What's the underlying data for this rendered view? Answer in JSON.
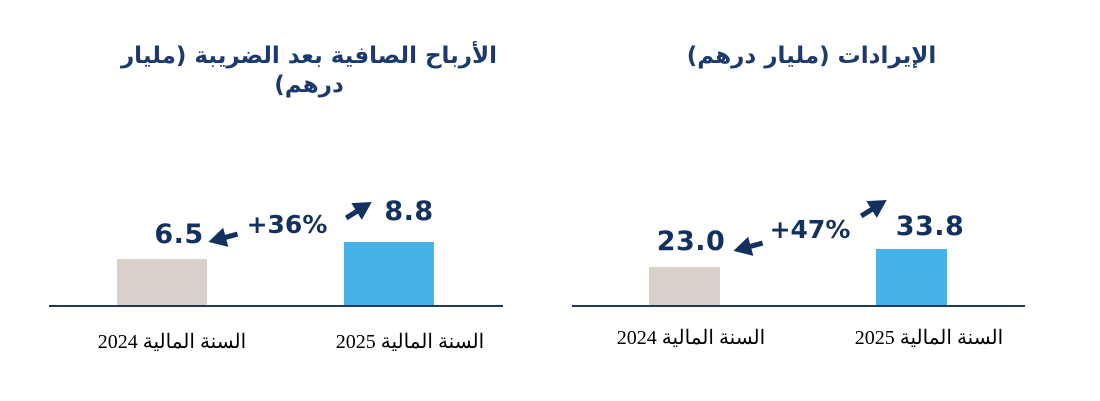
{
  "page": {
    "background": "#ffffff"
  },
  "colors": {
    "title_navy": "#1c3a6e",
    "value_navy": "#12315f",
    "axis_line": "#1f3a5c",
    "bar_2024_beige": "#d8d1c9",
    "bar_2025_blue": "#47b2e8",
    "tick_black": "#000000"
  },
  "charts": [
    {
      "title": "الأرباح الصافية بعد الضريبة (مليار درهم)",
      "growth_label": "+36%",
      "bars": [
        {
          "label": "السنة المالية 2024",
          "value_label": "6.5"
        },
        {
          "label": "السنة المالية 2025",
          "value_label": "8.8"
        }
      ]
    },
    {
      "title": "الإيرادات (مليار درهم)",
      "growth_label": "+47%",
      "bars": [
        {
          "label": "السنة المالية 2024",
          "value_label": "23.0"
        },
        {
          "label": "السنة المالية 2025",
          "value_label": "33.8"
        }
      ]
    }
  ],
  "chart_data": [
    {
      "type": "bar",
      "title": "الأرباح الصافية بعد الضريبة (مليار درهم)",
      "categories": [
        "السنة المالية 2024",
        "السنة المالية 2025"
      ],
      "values": [
        6.5,
        8.8
      ],
      "data_labels": [
        "6.5",
        "8.8"
      ],
      "annotations": [
        "+36%"
      ],
      "unit": "مليار درهم",
      "bar_colors": [
        "#d8d1c9",
        "#47b2e8"
      ],
      "grid": false,
      "legend": false,
      "baseline_only_axis": true
    },
    {
      "type": "bar",
      "title": "الإيرادات (مليار درهم)",
      "categories": [
        "السنة المالية 2024",
        "السنة المالية 2025"
      ],
      "values": [
        23.0,
        33.8
      ],
      "data_labels": [
        "23.0",
        "33.8"
      ],
      "annotations": [
        "+47%"
      ],
      "unit": "مليار درهم",
      "bar_colors": [
        "#d8d1c9",
        "#47b2e8"
      ],
      "grid": false,
      "legend": false,
      "baseline_only_axis": true
    }
  ]
}
